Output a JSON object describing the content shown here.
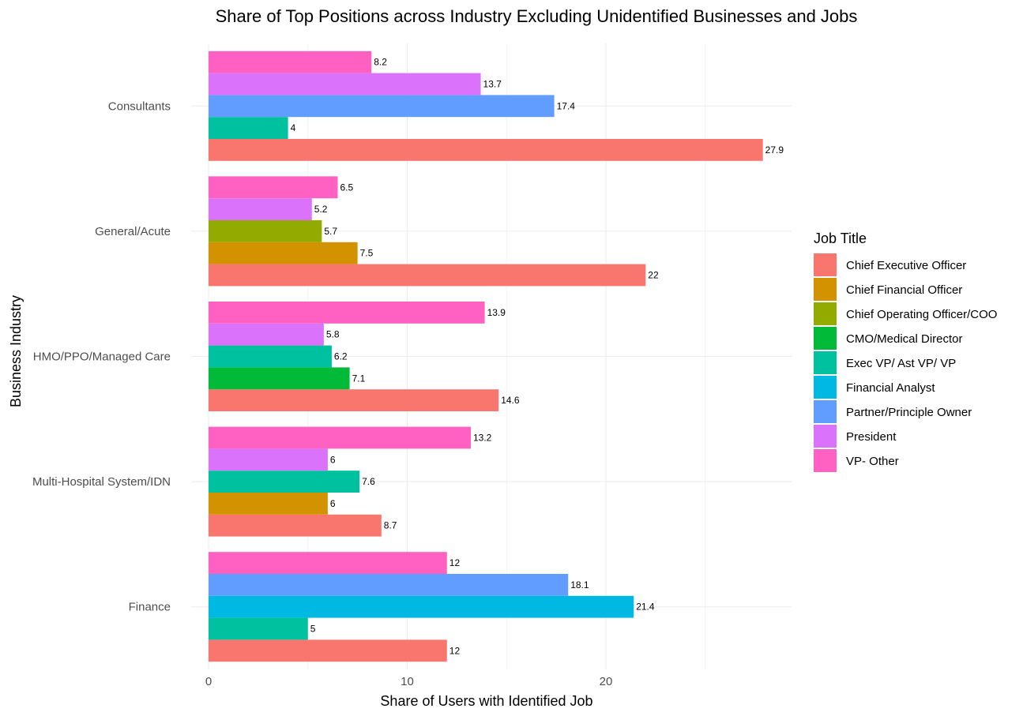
{
  "chart_data": {
    "type": "bar",
    "orientation": "horizontal",
    "title": "Share of Top Positions across Industry Excluding Unidentified Businesses and Jobs",
    "xlabel": "Share of Users with Identified Job",
    "ylabel": "Business Industry",
    "xlim": [
      0,
      29.3
    ],
    "x_ticks": [
      0,
      10,
      20
    ],
    "grid": true,
    "legend": {
      "title": "Job Title",
      "position": "right",
      "entries": [
        {
          "name": "Chief Executive Officer",
          "color": "#F8766D"
        },
        {
          "name": "Chief Financial Officer",
          "color": "#D39200"
        },
        {
          "name": "Chief Operating Officer/COO",
          "color": "#93AA00"
        },
        {
          "name": "CMO/Medical Director",
          "color": "#00BA38"
        },
        {
          "name": "Exec VP/ Ast VP/ VP",
          "color": "#00C19F"
        },
        {
          "name": "Financial Analyst",
          "color": "#00B9E3"
        },
        {
          "name": "Partner/Principle Owner",
          "color": "#619CFF"
        },
        {
          "name": "President",
          "color": "#DB72FB"
        },
        {
          "name": "VP- Other",
          "color": "#FF61C3"
        }
      ]
    },
    "categories": [
      "Consultants",
      "General/Acute",
      "HMO/PPO/Managed Care",
      "Multi-Hospital System/IDN",
      "Finance"
    ],
    "groups": [
      {
        "category": "Consultants",
        "bars": [
          {
            "series": "Chief Executive Officer",
            "value": 27.9,
            "label": "27.9"
          },
          {
            "series": "Exec VP/ Ast VP/ VP",
            "value": 4,
            "label": "4"
          },
          {
            "series": "Partner/Principle Owner",
            "value": 17.4,
            "label": "17.4"
          },
          {
            "series": "President",
            "value": 13.7,
            "label": "13.7"
          },
          {
            "series": "VP- Other",
            "value": 8.2,
            "label": "8.2"
          }
        ]
      },
      {
        "category": "General/Acute",
        "bars": [
          {
            "series": "Chief Executive Officer",
            "value": 22,
            "label": "22"
          },
          {
            "series": "Chief Financial Officer",
            "value": 7.5,
            "label": "7.5"
          },
          {
            "series": "Chief Operating Officer/COO",
            "value": 5.7,
            "label": "5.7"
          },
          {
            "series": "President",
            "value": 5.2,
            "label": "5.2"
          },
          {
            "series": "VP- Other",
            "value": 6.5,
            "label": "6.5"
          }
        ]
      },
      {
        "category": "HMO/PPO/Managed Care",
        "bars": [
          {
            "series": "Chief Executive Officer",
            "value": 14.6,
            "label": "14.6"
          },
          {
            "series": "CMO/Medical Director",
            "value": 7.1,
            "label": "7.1"
          },
          {
            "series": "Exec VP/ Ast VP/ VP",
            "value": 6.2,
            "label": "6.2"
          },
          {
            "series": "President",
            "value": 5.8,
            "label": "5.8"
          },
          {
            "series": "VP- Other",
            "value": 13.9,
            "label": "13.9"
          }
        ]
      },
      {
        "category": "Multi-Hospital System/IDN",
        "bars": [
          {
            "series": "Chief Executive Officer",
            "value": 8.7,
            "label": "8.7"
          },
          {
            "series": "Chief Financial Officer",
            "value": 6,
            "label": "6"
          },
          {
            "series": "Exec VP/ Ast VP/ VP",
            "value": 7.6,
            "label": "7.6"
          },
          {
            "series": "President",
            "value": 6,
            "label": "6"
          },
          {
            "series": "VP- Other",
            "value": 13.2,
            "label": "13.2"
          }
        ]
      },
      {
        "category": "Finance",
        "bars": [
          {
            "series": "Chief Executive Officer",
            "value": 12,
            "label": "12"
          },
          {
            "series": "Exec VP/ Ast VP/ VP",
            "value": 5,
            "label": "5"
          },
          {
            "series": "Financial Analyst",
            "value": 21.4,
            "label": "21.4"
          },
          {
            "series": "Partner/Principle Owner",
            "value": 18.1,
            "label": "18.1"
          },
          {
            "series": "VP- Other",
            "value": 12,
            "label": "12"
          }
        ]
      }
    ]
  }
}
